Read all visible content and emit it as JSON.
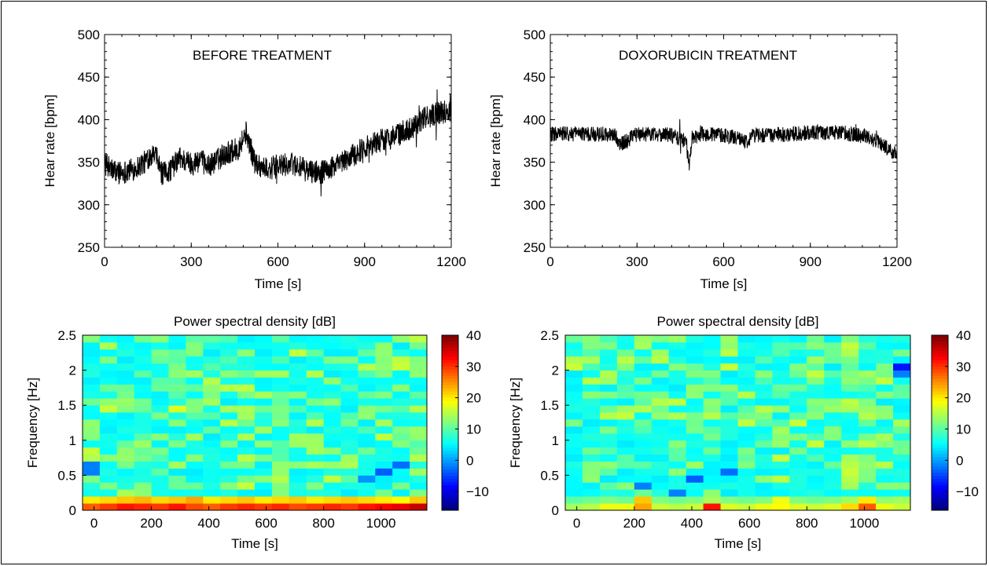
{
  "chart_data": [
    {
      "type": "line",
      "annotation": "BEFORE TREATMENT",
      "xlabel": "Time [s]",
      "ylabel": "Hear rate [bpm]",
      "xlim": [
        0,
        1200
      ],
      "ylim": [
        250,
        500
      ],
      "x_ticks": [
        "0",
        "300",
        "600",
        "900",
        "1200"
      ],
      "y_ticks": [
        "250",
        "300",
        "350",
        "400",
        "450",
        "500"
      ],
      "grid": false,
      "noise_amplitude_bpm": 14,
      "series": [
        {
          "x": [
            0,
            30,
            60,
            100,
            140,
            160,
            180,
            200,
            230,
            260,
            300,
            330,
            360,
            400,
            430,
            460,
            490,
            520,
            560,
            600,
            650,
            700,
            750,
            800,
            850,
            900,
            950,
            1000,
            1050,
            1100,
            1150,
            1200
          ],
          "y": [
            348,
            340,
            338,
            342,
            350,
            360,
            355,
            335,
            342,
            355,
            348,
            352,
            345,
            355,
            362,
            365,
            385,
            350,
            342,
            345,
            348,
            340,
            338,
            345,
            355,
            368,
            375,
            380,
            388,
            400,
            408,
            410
          ]
        }
      ]
    },
    {
      "type": "line",
      "annotation": "DOXORUBICIN TREATMENT",
      "xlabel": "Time [s]",
      "ylabel": "Hear rate [bpm]",
      "xlim": [
        0,
        1200
      ],
      "ylim": [
        250,
        500
      ],
      "x_ticks": [
        "0",
        "300",
        "600",
        "900",
        "1200"
      ],
      "y_ticks": [
        "250",
        "300",
        "350",
        "400",
        "450",
        "500"
      ],
      "grid": false,
      "noise_amplitude_bpm": 9,
      "series": [
        {
          "x": [
            0,
            100,
            200,
            230,
            240,
            300,
            400,
            470,
            480,
            490,
            520,
            600,
            680,
            700,
            800,
            900,
            1000,
            1100,
            1140,
            1170,
            1200
          ],
          "y": [
            383,
            383,
            383,
            380,
            370,
            383,
            383,
            375,
            345,
            378,
            383,
            382,
            375,
            382,
            382,
            385,
            385,
            380,
            372,
            365,
            358
          ]
        }
      ]
    },
    {
      "type": "heatmap",
      "title": "Power spectral density [dB]",
      "xlabel": "Time [s]",
      "ylabel": "Frequency [Hz]",
      "xlim": [
        -40,
        1160
      ],
      "ylim": [
        0,
        2.5
      ],
      "x_ticks": [
        "0",
        "200",
        "400",
        "600",
        "800",
        "1000"
      ],
      "y_ticks": [
        "0",
        "0.5",
        "1",
        "1.5",
        "2",
        "2.5"
      ],
      "colorbar_range": [
        -16,
        40
      ],
      "colorbar_ticks": [
        "40",
        "30",
        "20",
        "10",
        "0",
        "−10"
      ],
      "rows": 25,
      "cols": 20,
      "bottom_band_db": [
        [
          28,
          30,
          32,
          31,
          30,
          32,
          29,
          28,
          30,
          31,
          30,
          31,
          29,
          30,
          31,
          30,
          32,
          33,
          34,
          36
        ],
        [
          20,
          21,
          22,
          23,
          21,
          22,
          24,
          20,
          21,
          22,
          20,
          21,
          22,
          20,
          21,
          22,
          21,
          20,
          19,
          22
        ]
      ],
      "high_cells": [
        [
          5,
          14,
          17
        ],
        [
          6,
          10,
          14
        ],
        [
          7,
          15,
          14
        ],
        [
          8,
          14,
          14
        ],
        [
          12,
          10,
          14
        ],
        [
          10,
          19,
          14
        ]
      ],
      "low_cells": [
        [
          0,
          5,
          -2
        ],
        [
          0,
          6,
          -2
        ],
        [
          16,
          4,
          -1
        ],
        [
          17,
          5,
          -4
        ],
        [
          18,
          6,
          -3
        ]
      ]
    },
    {
      "type": "heatmap",
      "title": "Power spectral density [dB]",
      "xlabel": "Time [s]",
      "ylabel": "Frequency [Hz]",
      "xlim": [
        -40,
        1160
      ],
      "ylim": [
        0,
        2.5
      ],
      "x_ticks": [
        "0",
        "200",
        "400",
        "600",
        "800",
        "1000"
      ],
      "y_ticks": [
        "0",
        "0.5",
        "1",
        "1.5",
        "2",
        "2.5"
      ],
      "colorbar_range": [
        -16,
        40
      ],
      "colorbar_ticks": [
        "40",
        "30",
        "20",
        "10",
        "0",
        "−10"
      ],
      "rows": 25,
      "cols": 20,
      "bottom_band_db": [
        [
          14,
          15,
          18,
          18,
          24,
          16,
          15,
          16,
          32,
          17,
          16,
          18,
          19,
          17,
          16,
          17,
          21,
          28,
          18,
          16
        ],
        [
          10,
          11,
          12,
          11,
          22,
          12,
          11,
          12,
          14,
          12,
          11,
          12,
          18,
          12,
          11,
          12,
          14,
          20,
          13,
          14
        ]
      ],
      "high_cells": [
        [
          16,
          3,
          14
        ],
        [
          16,
          4,
          15
        ],
        [
          16,
          5,
          16
        ],
        [
          16,
          6,
          15
        ],
        [
          16,
          7,
          14
        ],
        [
          17,
          5,
          12
        ],
        [
          17,
          6,
          13
        ],
        [
          17,
          7,
          12
        ]
      ],
      "low_cells": [
        [
          6,
          2,
          -2
        ],
        [
          7,
          4,
          -4
        ],
        [
          9,
          5,
          -3
        ],
        [
          4,
          3,
          -2
        ],
        [
          19,
          20,
          -8
        ],
        [
          19,
          19,
          -2
        ]
      ]
    }
  ]
}
